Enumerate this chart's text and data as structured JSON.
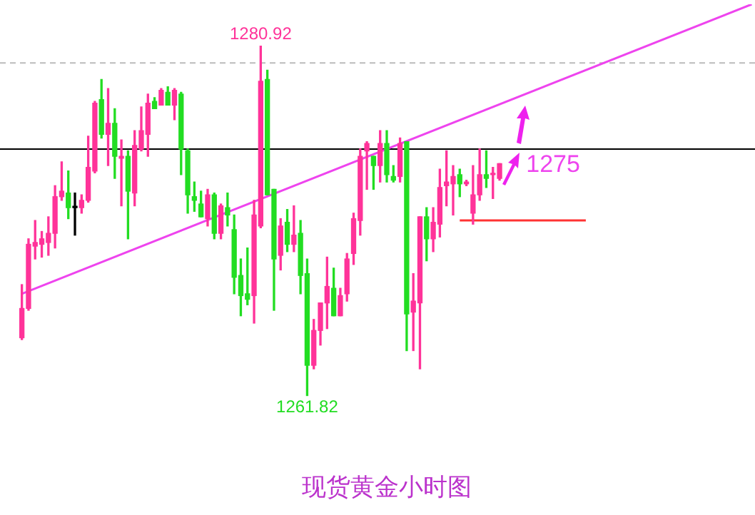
{
  "chart_data": {
    "type": "candlestick",
    "title": "现货黄金小时图",
    "categories": [
      null,
      null,
      null,
      null,
      null,
      null,
      null,
      null,
      null,
      null,
      null,
      null,
      null,
      null,
      null,
      null,
      null,
      null,
      null,
      null,
      null,
      null,
      null,
      null,
      null,
      null,
      null,
      null,
      null,
      null,
      null,
      null,
      null,
      null,
      null,
      null,
      null,
      null,
      null,
      null,
      null,
      null,
      null,
      null,
      null,
      null,
      null,
      null,
      null,
      null,
      null,
      null,
      null,
      null,
      null,
      null,
      null,
      null,
      null,
      null,
      null,
      null,
      null,
      null,
      null,
      null,
      null,
      null,
      null,
      null,
      null,
      null,
      null,
      null,
      null,
      null,
      null,
      null,
      null,
      null,
      null,
      null,
      null,
      null,
      null,
      null,
      null,
      null,
      null,
      null,
      null,
      null,
      null,
      null,
      null,
      null,
      null,
      null,
      null,
      null,
      null,
      null,
      null,
      null,
      null,
      null,
      null,
      null,
      null,
      null,
      null
    ],
    "ohlc": [
      [
        1265.0,
        1267.9,
        1264.9,
        1266.6
      ],
      [
        1266.6,
        1270.4,
        1266.5,
        1270.1
      ],
      [
        1270.0,
        1271.4,
        1269.3,
        1270.2
      ],
      [
        1270.1,
        1270.8,
        1269.4,
        1270.4
      ],
      [
        1270.2,
        1271.6,
        1269.5,
        1270.7
      ],
      [
        1270.7,
        1273.3,
        1269.9,
        1272.7
      ],
      [
        1272.7,
        1274.6,
        1272.5,
        1273.0
      ],
      [
        1272.9,
        1274.1,
        1271.5,
        1272.1
      ],
      [
        1272.1,
        1272.9,
        1270.6,
        1272.1
      ],
      [
        1272.1,
        1272.8,
        1271.8,
        1272.5
      ],
      [
        1272.5,
        1276.0,
        1272.4,
        1274.3
      ],
      [
        1274.1,
        1277.9,
        1274.0,
        1277.8
      ],
      [
        1278.0,
        1279.1,
        1275.9,
        1276.1
      ],
      [
        1276.1,
        1278.6,
        1274.4,
        1276.7
      ],
      [
        1276.7,
        1277.5,
        1273.7,
        1274.9
      ],
      [
        1274.8,
        1275.8,
        1272.2,
        1274.9
      ],
      [
        1274.9,
        1275.2,
        1270.4,
        1273.0
      ],
      [
        1272.9,
        1276.3,
        1272.2,
        1275.5
      ],
      [
        1275.3,
        1277.6,
        1275.2,
        1276.3
      ],
      [
        1276.1,
        1278.3,
        1274.9,
        1277.8
      ],
      [
        1277.9,
        1278.1,
        1277.5,
        1277.5
      ],
      [
        1277.7,
        1278.6,
        1277.7,
        1278.5
      ],
      [
        1278.4,
        1278.7,
        1277.7,
        1277.7
      ],
      [
        1277.7,
        1278.6,
        1276.9,
        1278.5
      ],
      [
        1278.3,
        1278.4,
        1273.9,
        1275.3
      ],
      [
        1275.2,
        1275.3,
        1271.8,
        1272.8
      ],
      [
        1272.7,
        1273.5,
        1271.9,
        1272.5
      ],
      [
        1272.3,
        1273.0,
        1271.6,
        1271.6
      ],
      [
        1271.5,
        1273.1,
        1271.1,
        1272.8
      ],
      [
        1272.8,
        1272.9,
        1270.4,
        1270.7
      ],
      [
        1270.7,
        1272.3,
        1270.4,
        1272.2
      ],
      [
        1272.1,
        1272.9,
        1271.1,
        1271.7
      ],
      [
        1270.9,
        1271.7,
        1267.4,
        1268.3
      ],
      [
        1268.4,
        1269.3,
        1266.2,
        1267.3
      ],
      [
        1267.4,
        1269.9,
        1266.8,
        1267.1
      ],
      [
        1267.3,
        1272.5,
        1265.8,
        1271.7
      ],
      [
        1271.1,
        1280.92,
        1271.0,
        1279.0
      ],
      [
        1279.1,
        1279.6,
        1272.8,
        1272.8
      ],
      [
        1273.1,
        1273.1,
        1266.5,
        1269.3
      ],
      [
        1269.5,
        1271.5,
        1268.7,
        1271.1
      ],
      [
        1271.3,
        1272.0,
        1269.7,
        1270.1
      ],
      [
        1270.1,
        1272.2,
        1269.7,
        1270.6
      ],
      [
        1270.7,
        1271.4,
        1267.4,
        1268.4
      ],
      [
        1268.5,
        1269.3,
        1261.82,
        1263.5
      ],
      [
        1263.5,
        1266.0,
        1263.3,
        1265.4
      ],
      [
        1265.4,
        1266.9,
        1264.6,
        1266.9
      ],
      [
        1266.9,
        1269.4,
        1265.5,
        1267.8
      ],
      [
        1267.7,
        1268.8,
        1266.2,
        1266.2
      ],
      [
        1266.2,
        1267.7,
        1266.2,
        1267.3
      ],
      [
        1267.4,
        1269.6,
        1267.0,
        1269.3
      ],
      [
        1269.6,
        1271.8,
        1269.0,
        1271.5
      ],
      [
        1271.4,
        1275.3,
        1270.6,
        1274.9
      ],
      [
        1275.2,
        1275.7,
        1273.1,
        1275.6
      ],
      [
        1274.9,
        1274.9,
        1273.1,
        1274.4
      ],
      [
        1274.4,
        1276.3,
        1273.5,
        1275.6
      ],
      [
        1275.6,
        1276.3,
        1273.5,
        1273.9
      ],
      [
        1273.8,
        1274.4,
        1273.5,
        1273.6
      ],
      [
        1273.8,
        1275.9,
        1273.5,
        1275.6
      ],
      [
        1275.7,
        1275.7,
        1264.3,
        1266.3
      ],
      [
        1266.4,
        1268.5,
        1264.3,
        1267.0
      ],
      [
        1266.9,
        1271.6,
        1263.3,
        1271.6
      ],
      [
        1271.6,
        1272.1,
        1269.2,
        1270.4
      ],
      [
        1270.4,
        1272.1,
        1269.7,
        1271.3
      ],
      [
        1271.2,
        1274.2,
        1270.5,
        1273.2
      ],
      [
        1273.3,
        1275.2,
        1272.2,
        1273.5
      ],
      [
        1273.4,
        1274.4,
        1271.7,
        1273.8
      ],
      [
        1273.9,
        1274.2,
        1272.7,
        1273.4
      ],
      [
        1273.4,
        1273.6,
        1273.3,
        1273.5
      ],
      [
        1271.8,
        1274.4,
        1271.2,
        1272.8
      ],
      [
        1272.8,
        1275.3,
        1272.5,
        1273.9
      ],
      [
        1273.9,
        1275.2,
        1273.2,
        1273.7
      ],
      [
        1273.9,
        1274.3,
        1272.6,
        1273.9
      ],
      [
        1273.7,
        1274.5,
        1273.6,
        1274.5
      ],
      null,
      null,
      null,
      null,
      null,
      null,
      null,
      null,
      null,
      null,
      null,
      null,
      null,
      null,
      null,
      null,
      null,
      null,
      null,
      null,
      null,
      null,
      null,
      null,
      null,
      null,
      null,
      null,
      null,
      null,
      null,
      null,
      null,
      null,
      null,
      null,
      null,
      null
    ],
    "colors": [
      "#ff3399",
      "#ff3399",
      "#ff3399",
      "#ff3399",
      "#ff3399",
      "#ff3399",
      "#ff3399",
      "#22dd22",
      "#000000",
      "#ff3399",
      "#ff3399",
      "#ff3399",
      "#22dd22",
      "#ff3399",
      "#22dd22",
      "#ff3399",
      "#22dd22",
      "#ff3399",
      "#ff3399",
      "#ff3399",
      "#22dd22",
      "#ff3399",
      "#22dd22",
      "#ff3399",
      "#22dd22",
      "#22dd22",
      "#22dd22",
      "#22dd22",
      "#ff3399",
      "#22dd22",
      "#ff3399",
      "#22dd22",
      "#22dd22",
      "#22dd22",
      "#22dd22",
      "#ff3399",
      "#ff3399",
      "#22dd22",
      "#22dd22",
      "#ff3399",
      "#22dd22",
      "#ff3399",
      "#22dd22",
      "#22dd22",
      "#ff3399",
      "#ff3399",
      "#ff3399",
      "#22dd22",
      "#ff3399",
      "#ff3399",
      "#ff3399",
      "#ff3399",
      "#ff3399",
      "#22dd22",
      "#ff3399",
      "#22dd22",
      "#22dd22",
      "#ff3399",
      "#22dd22",
      "#ff3399",
      "#ff3399",
      "#22dd22",
      "#ff3399",
      "#ff3399",
      "#ff3399",
      "#ff3399",
      "#22dd22",
      "#ff3399",
      "#ff3399",
      "#ff3399",
      "#22dd22",
      "#ff3399",
      "#ff3399",
      null,
      null,
      null,
      null,
      null,
      null,
      null,
      null,
      null,
      null,
      null,
      null,
      null,
      null,
      null,
      null,
      null,
      null,
      null,
      null,
      null,
      null,
      null,
      null,
      null,
      null,
      null,
      null,
      null,
      null,
      null,
      null,
      null,
      null,
      null,
      null,
      null,
      null
    ],
    "series": [
      {
        "type": "line",
        "color": "#ee44ee",
        "values": [
          1267.4,
          null,
          null,
          null,
          null,
          null,
          null,
          null,
          null,
          null,
          null,
          null,
          null,
          null,
          null,
          null,
          null,
          null,
          null,
          null,
          null,
          null,
          null,
          null,
          null,
          null,
          null,
          null,
          null,
          null,
          null,
          null,
          null,
          null,
          null,
          null,
          null,
          null,
          null,
          null,
          null,
          null,
          null,
          null,
          null,
          null,
          null,
          null,
          null,
          null,
          null,
          null,
          null,
          null,
          null,
          null,
          null,
          null,
          null,
          null,
          null,
          null,
          null,
          null,
          null,
          null,
          null,
          null,
          null,
          null,
          null,
          null,
          null,
          null,
          null,
          null,
          null,
          null,
          null,
          null,
          null,
          null,
          null,
          null,
          null,
          null,
          null,
          null,
          null,
          null,
          null,
          null,
          null,
          null,
          null,
          null,
          null,
          null,
          null,
          null,
          null,
          null,
          null,
          null,
          null,
          null,
          null,
          null,
          null,
          null,
          1283.2
        ]
      },
      {
        "type": "line",
        "color": "#ff3333",
        "values": [
          null,
          null,
          null,
          null,
          null,
          null,
          null,
          null,
          null,
          null,
          null,
          null,
          null,
          null,
          null,
          null,
          null,
          null,
          null,
          null,
          null,
          null,
          null,
          null,
          null,
          null,
          null,
          null,
          null,
          null,
          null,
          null,
          null,
          null,
          null,
          null,
          null,
          null,
          null,
          null,
          null,
          null,
          null,
          null,
          null,
          null,
          null,
          null,
          null,
          null,
          null,
          null,
          null,
          null,
          null,
          null,
          null,
          null,
          null,
          null,
          null,
          null,
          null,
          null,
          null,
          null,
          1271.4,
          null,
          null,
          null,
          null,
          null,
          null,
          null,
          null,
          null,
          null,
          null,
          null,
          null,
          null,
          null,
          null,
          null,
          null,
          1271.4,
          null,
          null,
          null,
          null,
          null,
          null,
          null,
          null,
          null,
          null,
          null,
          null,
          null,
          null,
          null,
          null,
          null,
          null,
          null,
          null,
          null,
          null,
          null,
          null,
          null
        ]
      }
    ],
    "ref_lines": [
      {
        "axis": "y",
        "value": 1275.3,
        "color": "#000000",
        "line_style": "solid"
      },
      {
        "axis": "y",
        "value": 1280.0,
        "color": "#bbbbbb",
        "line_style": "dashed"
      }
    ],
    "annotations": [
      {
        "text": "1280.92",
        "y": 1280.92
      },
      {
        "text": "1261.82",
        "y": 1261.82
      },
      {
        "text": "1275",
        "y": 1275
      }
    ],
    "tick_labels": false,
    "legend": false
  }
}
